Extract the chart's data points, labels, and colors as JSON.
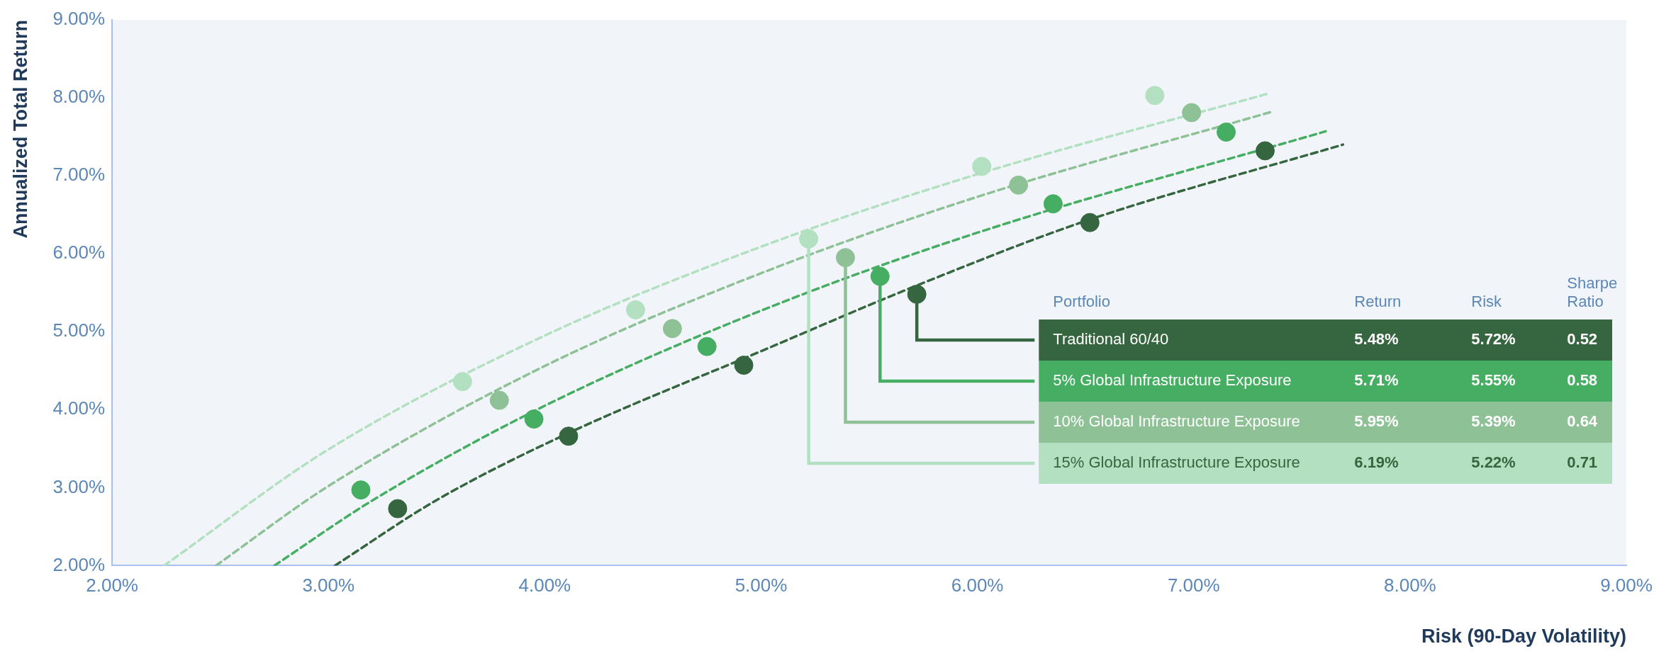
{
  "chart_data": {
    "type": "scatter",
    "xlabel": "Risk (90-Day Volatility)",
    "ylabel": "Annualized Total Return",
    "xlim": [
      2,
      9
    ],
    "ylim": [
      2,
      9
    ],
    "xticks": [
      {
        "value": 2,
        "label": "2.00%"
      },
      {
        "value": 3,
        "label": "3.00%"
      },
      {
        "value": 4,
        "label": "4.00%"
      },
      {
        "value": 5,
        "label": "5.00%"
      },
      {
        "value": 6,
        "label": "6.00%"
      },
      {
        "value": 7,
        "label": "7.00%"
      },
      {
        "value": 8,
        "label": "8.00%"
      },
      {
        "value": 9,
        "label": "9.00%"
      }
    ],
    "yticks": [
      {
        "value": 2,
        "label": "2.00%"
      },
      {
        "value": 3,
        "label": "3.00%"
      },
      {
        "value": 4,
        "label": "4.00%"
      },
      {
        "value": 5,
        "label": "5.00%"
      },
      {
        "value": 6,
        "label": "6.00%"
      },
      {
        "value": 7,
        "label": "7.00%"
      },
      {
        "value": 8,
        "label": "8.00%"
      },
      {
        "value": 9,
        "label": "9.00%"
      }
    ],
    "marker": "circle",
    "legend": "right",
    "legend_title": "Portfolio",
    "series": [
      {
        "name": "Traditional 60/40",
        "color": "#36663f",
        "x": [
          3.32,
          4.11,
          4.92,
          5.72,
          6.52,
          7.33
        ],
        "values": [
          2.73,
          3.66,
          4.57,
          5.48,
          6.4,
          7.32
        ]
      },
      {
        "name": "5% Global Infrastructure Exposure",
        "color": "#45ae62",
        "x": [
          3.15,
          3.95,
          4.75,
          5.55,
          6.35,
          7.15
        ],
        "values": [
          2.97,
          3.88,
          4.81,
          5.71,
          6.64,
          7.56
        ]
      },
      {
        "name": "10% Global Infrastructure Exposure",
        "color": "#8fc197",
        "x": [
          3.79,
          4.59,
          5.39,
          6.19,
          6.99
        ],
        "values": [
          4.12,
          5.04,
          5.95,
          6.88,
          7.81
        ]
      },
      {
        "name": "15% Global Infrastructure Exposure",
        "color": "#b2e0c0",
        "x": [
          3.62,
          4.42,
          5.22,
          6.02,
          6.82
        ],
        "values": [
          4.36,
          5.28,
          6.19,
          7.12,
          8.03
        ]
      },
      {
        "type": "line",
        "line_style": "dashed",
        "marker": "none",
        "color": "#36663f",
        "x": [
          3.03,
          3.5,
          4.11,
          5.0,
          5.7,
          6.5,
          7.69
        ],
        "values": [
          2.0,
          2.84,
          3.7,
          4.75,
          5.57,
          6.42,
          7.4
        ]
      },
      {
        "type": "line",
        "line_style": "dashed",
        "marker": "none",
        "color": "#45ae62",
        "x": [
          2.75,
          3.2,
          4.0,
          5.0,
          6.0,
          7.61
        ],
        "values": [
          2.0,
          2.83,
          4.05,
          5.27,
          6.27,
          7.57
        ]
      },
      {
        "type": "line",
        "line_style": "dashed",
        "marker": "none",
        "color": "#8fc197",
        "x": [
          2.48,
          3.0,
          4.0,
          5.0,
          6.0,
          7.36
        ],
        "values": [
          2.0,
          3.02,
          4.56,
          5.75,
          6.73,
          7.82
        ]
      },
      {
        "type": "line",
        "line_style": "dashed",
        "marker": "none",
        "color": "#b2e0c0",
        "x": [
          2.24,
          3.0,
          4.0,
          5.0,
          6.0,
          7.34
        ],
        "values": [
          2.0,
          3.49,
          4.95,
          6.09,
          7.02,
          8.05
        ]
      }
    ],
    "annotations": [
      "Return",
      "Risk",
      "Sharpe Ratio",
      "5.48%",
      "5.72%",
      "0.52",
      "5.71%",
      "5.55%",
      "0.58",
      "5.95%",
      "5.39%",
      "0.64",
      "6.19%",
      "5.22%",
      "0.71"
    ]
  }
}
